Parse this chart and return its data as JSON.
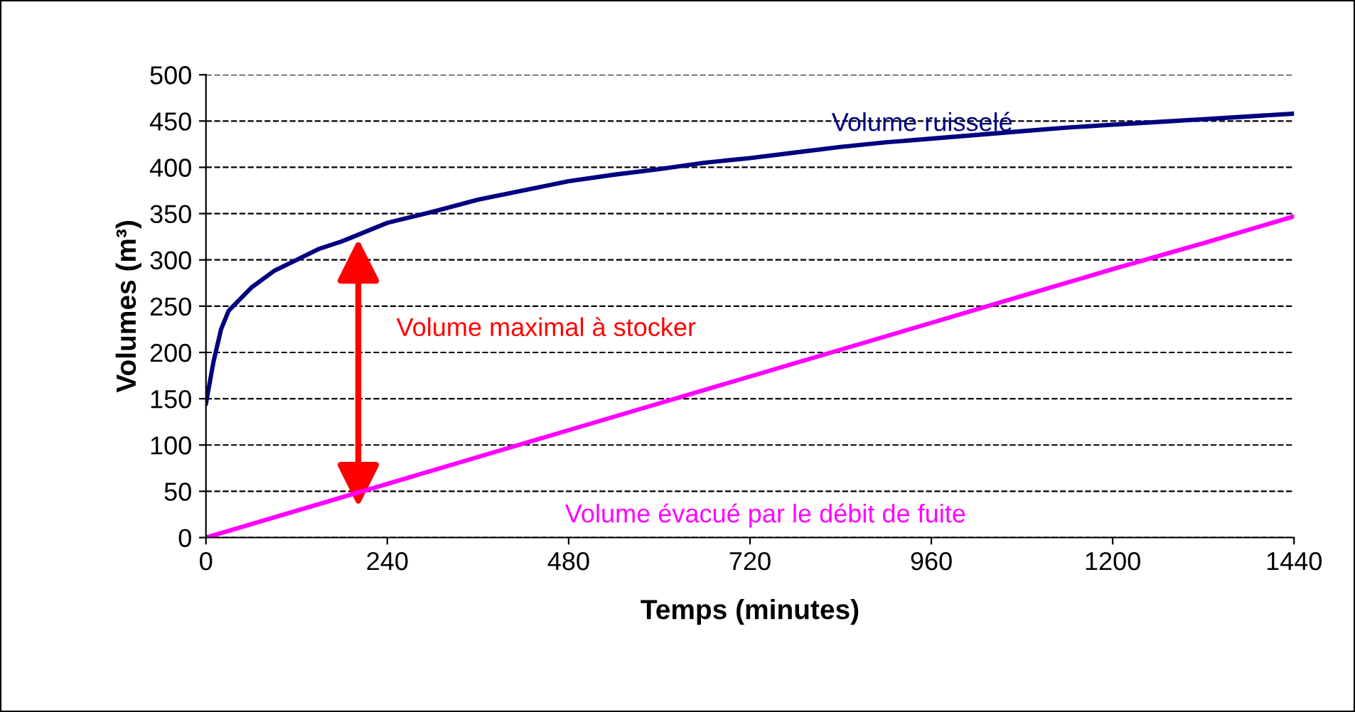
{
  "chart_data": {
    "type": "line",
    "xlabel": "Temps (minutes)",
    "ylabel": "Volumes (m³)",
    "xlim": [
      0,
      1440
    ],
    "xticks": [
      0,
      240,
      480,
      720,
      960,
      1200,
      1440
    ],
    "ylim": [
      0,
      500
    ],
    "yticks": [
      0,
      50,
      100,
      150,
      200,
      250,
      300,
      350,
      400,
      450,
      500
    ],
    "grid": "y",
    "legend": false,
    "marker": "none",
    "line_style": "solid",
    "series": [
      {
        "name": "Volume ruisselé",
        "color": "#000080",
        "x": [
          0,
          10,
          20,
          30,
          60,
          90,
          120,
          150,
          180,
          240,
          300,
          360,
          420,
          480,
          540,
          600,
          660,
          720,
          780,
          840,
          900,
          960,
          1020,
          1080,
          1140,
          1200,
          1260,
          1320,
          1380,
          1440
        ],
        "values": [
          145,
          190,
          225,
          245,
          270,
          288,
          300,
          312,
          320,
          340,
          352,
          365,
          375,
          385,
          392,
          398,
          405,
          410,
          416,
          422,
          427,
          431,
          435,
          439,
          443,
          446,
          449,
          452,
          455,
          458
        ]
      },
      {
        "name": "Volume évacué par le débit de fuite",
        "color": "#ff00ff",
        "x": [
          0,
          120,
          240,
          360,
          480,
          600,
          720,
          840,
          960,
          1080,
          1200,
          1320,
          1440
        ],
        "values": [
          0,
          29,
          58,
          87,
          116,
          145,
          174,
          203,
          232,
          261,
          290,
          318,
          347
        ]
      }
    ],
    "annotations": [
      "Volume maximal à stocker"
    ]
  }
}
